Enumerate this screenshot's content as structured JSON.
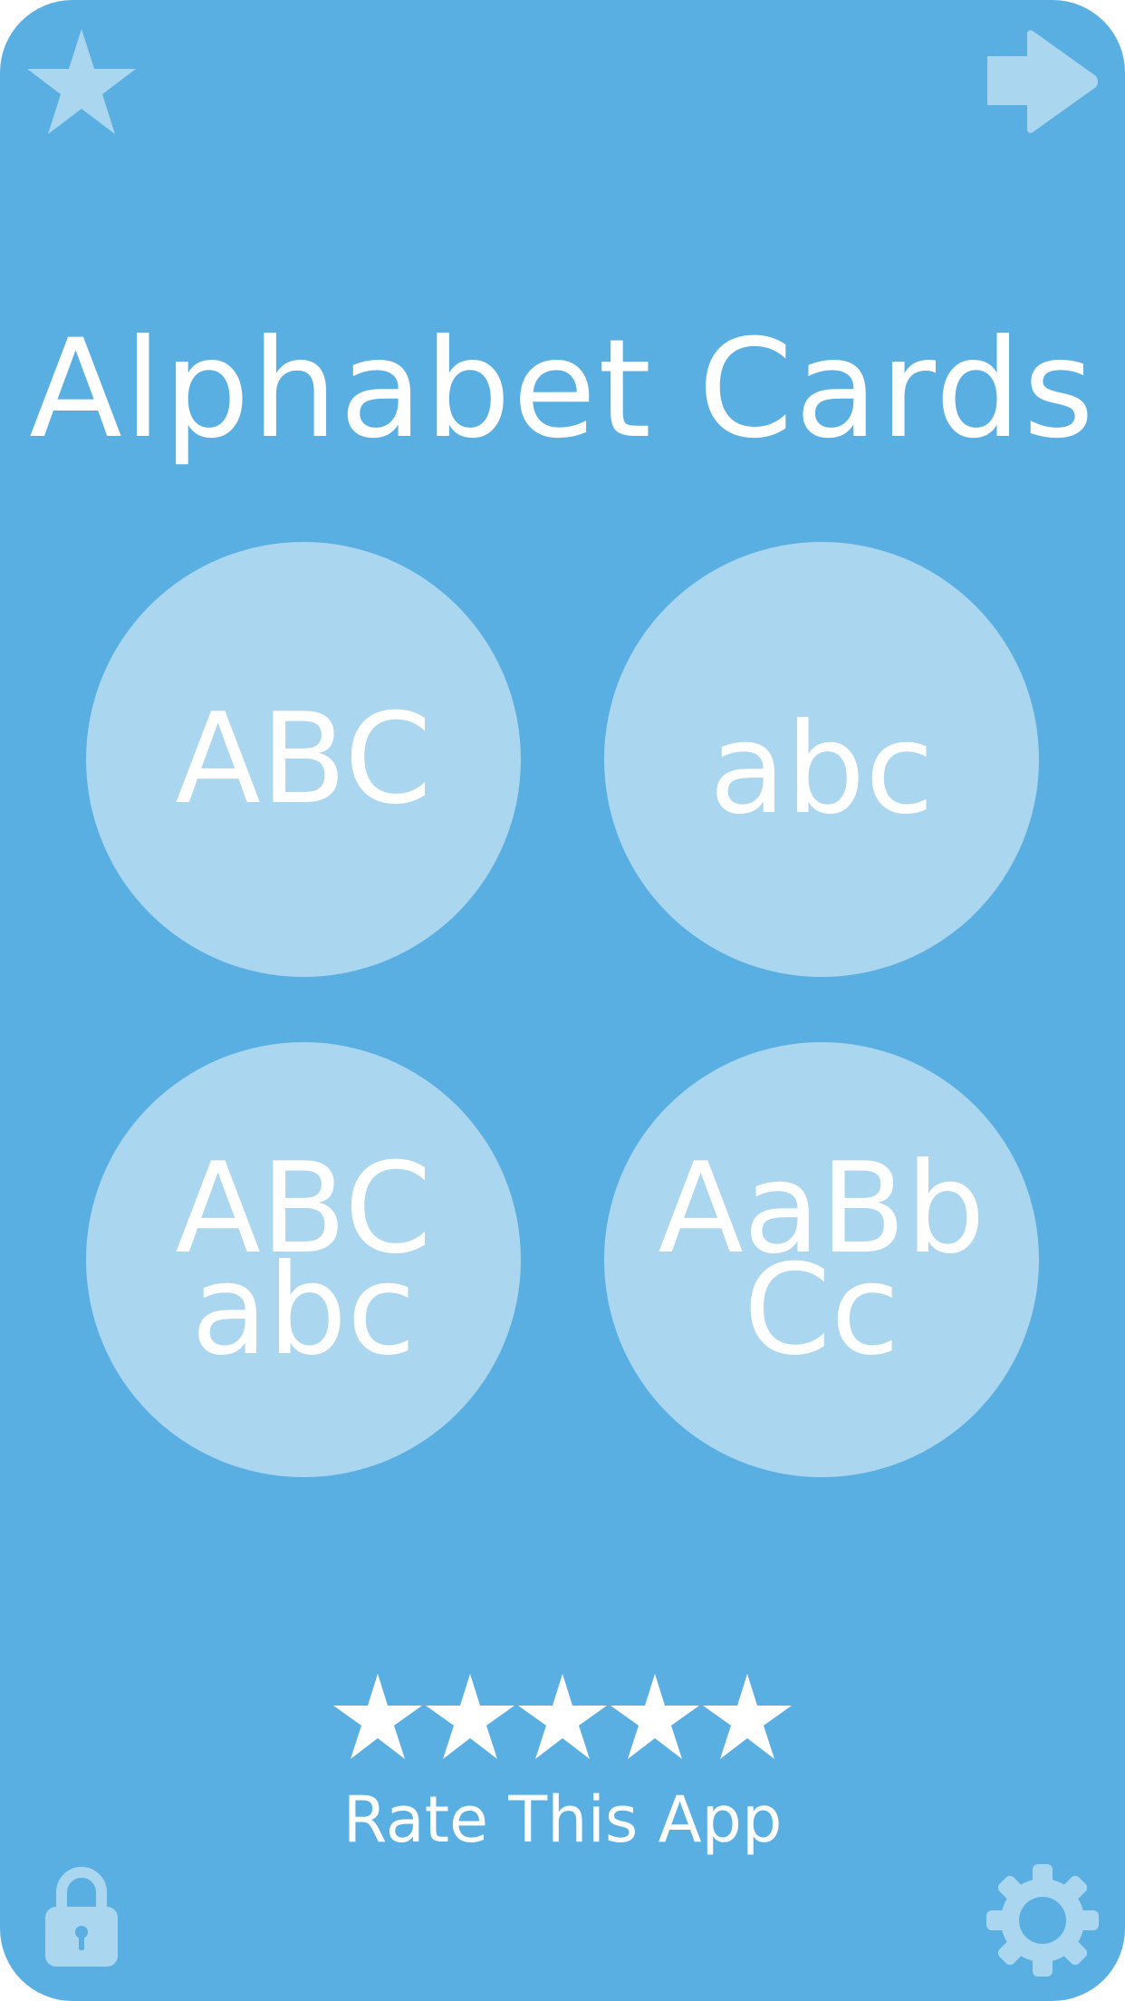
{
  "app": {
    "title": "Alphabet Cards"
  },
  "top_bar": {
    "favorite_icon": "star-icon",
    "next_icon": "arrow-right-icon"
  },
  "options": [
    {
      "id": "uppercase",
      "lines": [
        "ABC"
      ]
    },
    {
      "id": "lowercase",
      "lines": [
        "abc"
      ]
    },
    {
      "id": "upper-and-lower",
      "lines": [
        "ABC",
        "abc"
      ]
    },
    {
      "id": "letter-pairs",
      "lines": [
        "AaBb",
        "Cc"
      ]
    }
  ],
  "rating": {
    "stars": 5,
    "label": "Rate This App",
    "icon": "star-icon"
  },
  "bottom_bar": {
    "lock_icon": "lock-icon",
    "settings_icon": "gear-icon"
  },
  "colors": {
    "background": "#5aafe2",
    "circle": "#abd6ef",
    "icon": "#abd6ef",
    "text": "#ffffff"
  }
}
